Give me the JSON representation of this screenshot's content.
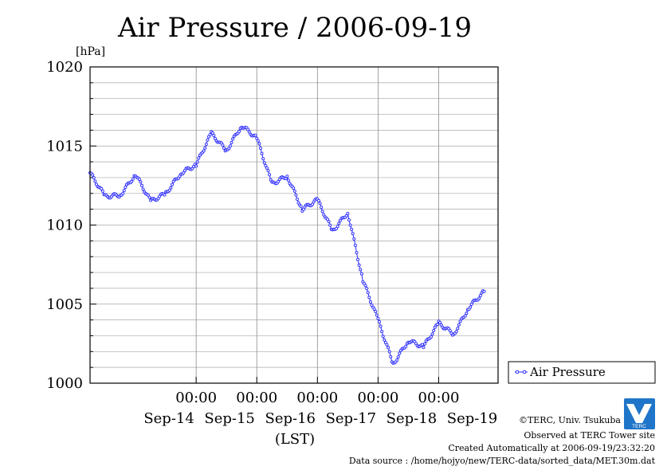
{
  "chart_data": {
    "type": "line",
    "title": "Air Pressure / 2006-09-19",
    "ylabel": "[hPa]",
    "xlabel": "(LST)",
    "ylim": [
      1000,
      1020
    ],
    "yticks": [
      1000,
      1005,
      1010,
      1015,
      1020
    ],
    "xlim": [
      "2006-09-13T06:00",
      "2006-09-19T23:30"
    ],
    "grid": true,
    "legend_position": "right",
    "xaxis": {
      "time_tick_label": "00:00",
      "day_ticks": [
        "2006-09-15T00:00",
        "2006-09-16T00:00",
        "2006-09-17T00:00",
        "2006-09-18T00:00",
        "2006-09-19T00:00"
      ],
      "day_labels": [
        {
          "label": "Sep-14",
          "at": "2006-09-14T00:00"
        },
        {
          "label": "Sep-15",
          "at": "2006-09-15T00:00"
        },
        {
          "label": "Sep-16",
          "at": "2006-09-16T00:00"
        },
        {
          "label": "Sep-17",
          "at": "2006-09-17T00:00"
        },
        {
          "label": "Sep-18",
          "at": "2006-09-18T00:00"
        },
        {
          "label": "Sep-19",
          "at": "2006-09-19T00:00"
        }
      ]
    },
    "series": [
      {
        "name": "Air Pressure",
        "color": "#2a2aff",
        "points": [
          [
            "2006-09-13T06:00",
            1013.3
          ],
          [
            "2006-09-13T12:00",
            1011.8
          ],
          [
            "2006-09-13T18:00",
            1011.9
          ],
          [
            "2006-09-14T00:00",
            1013.2
          ],
          [
            "2006-09-14T06:00",
            1011.5
          ],
          [
            "2006-09-14T12:00",
            1012.0
          ],
          [
            "2006-09-14T18:00",
            1013.3
          ],
          [
            "2006-09-15T00:00",
            1013.8
          ],
          [
            "2006-09-15T06:00",
            1015.8
          ],
          [
            "2006-09-15T12:00",
            1014.7
          ],
          [
            "2006-09-15T18:00",
            1016.3
          ],
          [
            "2006-09-16T00:00",
            1015.5
          ],
          [
            "2006-09-16T06:00",
            1012.6
          ],
          [
            "2006-09-16T12:00",
            1013.1
          ],
          [
            "2006-09-16T18:00",
            1011.0
          ],
          [
            "2006-09-17T00:00",
            1011.6
          ],
          [
            "2006-09-17T06:00",
            1009.6
          ],
          [
            "2006-09-17T12:00",
            1010.8
          ],
          [
            "2006-09-17T18:00",
            1006.5
          ],
          [
            "2006-09-18T00:00",
            1004.0
          ],
          [
            "2006-09-18T06:00",
            1001.2
          ],
          [
            "2006-09-18T12:00",
            1002.7
          ],
          [
            "2006-09-18T18:00",
            1002.3
          ],
          [
            "2006-09-19T00:00",
            1003.8
          ],
          [
            "2006-09-19T06:00",
            1003.1
          ],
          [
            "2006-09-19T12:00",
            1004.8
          ],
          [
            "2006-09-19T18:00",
            1005.8
          ]
        ]
      }
    ]
  },
  "credits": {
    "copyright": "©TERC, Univ. Tsukuba",
    "observed": "Observed at TERC Tower site",
    "created": "Created Automatically at 2006-09-19/23:32:20",
    "source": "Data source : /home/hojyo/new/TERC-data/sorted_data/MET.30m.dat"
  },
  "logo": {
    "text": "TERC",
    "color": "#1f75c9"
  }
}
